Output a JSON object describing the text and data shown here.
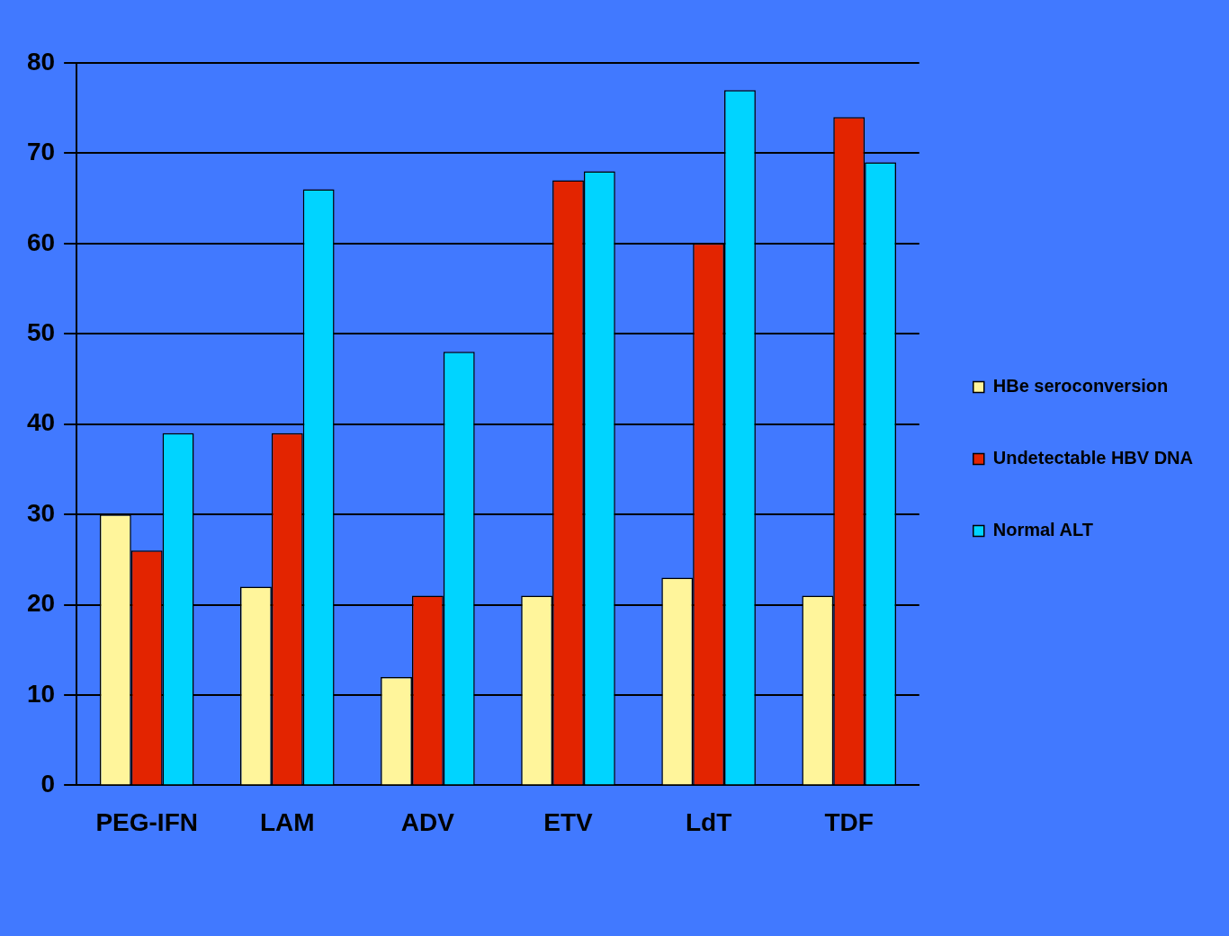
{
  "chart_data": {
    "type": "bar",
    "categories": [
      "PEG-IFN",
      "LAM",
      "ADV",
      "ETV",
      "LdT",
      "TDF"
    ],
    "series": [
      {
        "name": "HBe seroconversion",
        "color": "#fff59b",
        "values": [
          30,
          22,
          12,
          21,
          23,
          21
        ]
      },
      {
        "name": "Undetectable HBV DNA",
        "color": "#e32400",
        "values": [
          26,
          39,
          21,
          67,
          60,
          74
        ]
      },
      {
        "name": "Normal ALT",
        "color": "#00d4ff",
        "values": [
          39,
          66,
          48,
          68,
          77,
          69
        ]
      }
    ],
    "ylim": [
      0,
      80
    ],
    "yticks": [
      0,
      10,
      20,
      30,
      40,
      50,
      60,
      70,
      80
    ],
    "grid": "y",
    "legend": "right"
  }
}
